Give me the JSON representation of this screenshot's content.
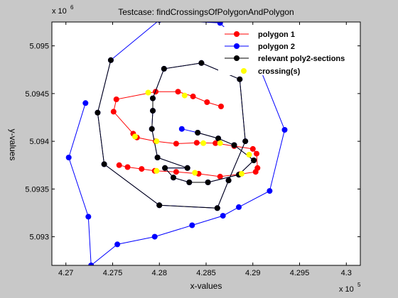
{
  "chart_data": {
    "type": "scatter",
    "title": "Testcase: findCrossingsOfPolygonAndPolygon",
    "xlabel": "x-values",
    "ylabel": "y-values",
    "xlim": [
      426850,
      430150
    ],
    "ylim": [
      5092700,
      5095250
    ],
    "x_ticks": [
      427000,
      427500,
      428000,
      428500,
      429000,
      429500,
      430000
    ],
    "x_tick_labels": [
      "4.27",
      "4.275",
      "4.28",
      "4.285",
      "4.29",
      "4.295",
      "4.3"
    ],
    "y_ticks": [
      5093000,
      5093500,
      5094000,
      5094500,
      5095000
    ],
    "y_tick_labels": [
      "5.093",
      "5.0935",
      "5.094",
      "5.0945",
      "5.095"
    ],
    "x_multiplier": "x 10",
    "x_multiplier_exp": "5",
    "y_multiplier": "x 10",
    "y_multiplier_exp": "6",
    "grid": false,
    "legend_position": "top-right",
    "series": [
      {
        "name": "polygon 1",
        "color": "#ff0000",
        "points": [
          [
            428660,
            5094365
          ],
          [
            428510,
            5094410
          ],
          [
            428360,
            5094470
          ],
          [
            428200,
            5094520
          ],
          [
            427960,
            5094520
          ],
          [
            427540,
            5094440
          ],
          [
            427510,
            5094310
          ],
          [
            427720,
            5094080
          ],
          [
            427760,
            5094040
          ],
          [
            427960,
            5094000
          ],
          [
            428180,
            5093975
          ],
          [
            428400,
            5093985
          ],
          [
            428600,
            5093980
          ],
          [
            428800,
            5093950
          ],
          [
            429000,
            5093920
          ],
          [
            429040,
            5093870
          ],
          [
            429050,
            5093720
          ],
          [
            429030,
            5093680
          ],
          [
            428860,
            5093655
          ],
          [
            428650,
            5093630
          ],
          [
            428420,
            5093660
          ],
          [
            428180,
            5093680
          ],
          [
            427950,
            5093690
          ],
          [
            427810,
            5093710
          ],
          [
            427660,
            5093730
          ],
          [
            427570,
            5093750
          ]
        ]
      },
      {
        "name": "polygon 2",
        "color": "#0000ff",
        "points": [
          [
            428240,
            5094130
          ],
          [
            428410,
            5094090
          ],
          [
            428630,
            5094030
          ],
          [
            428800,
            5093960
          ],
          [
            429010,
            5093800
          ],
          [
            428850,
            5093650
          ],
          [
            428520,
            5093570
          ],
          [
            428320,
            5093570
          ],
          [
            428150,
            5093620
          ],
          [
            428060,
            5093720
          ],
          [
            428300,
            5093720
          ],
          [
            427980,
            5093830
          ],
          [
            427920,
            5094130
          ],
          [
            427930,
            5094320
          ],
          [
            427930,
            5094450
          ],
          [
            428050,
            5094760
          ],
          [
            428450,
            5094820
          ],
          [
            428860,
            5094650
          ],
          [
            428920,
            5094000
          ],
          [
            428740,
            5093590
          ],
          [
            428620,
            5093300
          ],
          [
            428000,
            5093330
          ],
          [
            427410,
            5093760
          ],
          [
            427340,
            5094300
          ],
          [
            427480,
            5094850
          ],
          [
            428000,
            5095270
          ],
          [
            428650,
            5095240
          ],
          [
            429050,
            5094830
          ],
          [
            429340,
            5094120
          ],
          [
            429180,
            5093480
          ],
          [
            428850,
            5093310
          ],
          [
            428680,
            5093220
          ],
          [
            428350,
            5093120
          ],
          [
            427950,
            5093000
          ],
          [
            427550,
            5092920
          ],
          [
            427270,
            5092700
          ],
          [
            427240,
            5093210
          ],
          [
            427030,
            5093830
          ],
          [
            427210,
            5094400
          ]
        ]
      },
      {
        "name": "relevant poly2-sections",
        "color": "#000000",
        "points": [
          [
            428410,
            5094090
          ],
          [
            428630,
            5094030
          ],
          [
            428800,
            5093960
          ],
          [
            429010,
            5093800
          ],
          [
            428850,
            5093650
          ],
          [
            428520,
            5093570
          ],
          [
            428320,
            5093570
          ],
          [
            428150,
            5093620
          ],
          [
            428060,
            5093720
          ],
          [
            428300,
            5093720
          ],
          [
            427980,
            5093830
          ],
          [
            427920,
            5094130
          ],
          [
            427930,
            5094320
          ],
          [
            427930,
            5094450
          ],
          [
            428050,
            5094760
          ],
          [
            428450,
            5094820
          ],
          [
            428860,
            5094650
          ],
          [
            428920,
            5094000
          ],
          [
            428740,
            5093590
          ],
          [
            428620,
            5093300
          ],
          [
            428000,
            5093330
          ],
          [
            427410,
            5093760
          ],
          [
            427340,
            5094300
          ],
          [
            427480,
            5094850
          ]
        ]
      },
      {
        "name": "crossing(s)",
        "color": "#ffff00",
        "points": [
          [
            427880,
            5094510
          ],
          [
            428270,
            5094480
          ],
          [
            427740,
            5094050
          ],
          [
            427970,
            5094000
          ],
          [
            428470,
            5093980
          ],
          [
            428650,
            5093980
          ],
          [
            428960,
            5093860
          ],
          [
            428880,
            5093660
          ],
          [
            428380,
            5093670
          ],
          [
            427970,
            5093690
          ]
        ]
      }
    ]
  }
}
